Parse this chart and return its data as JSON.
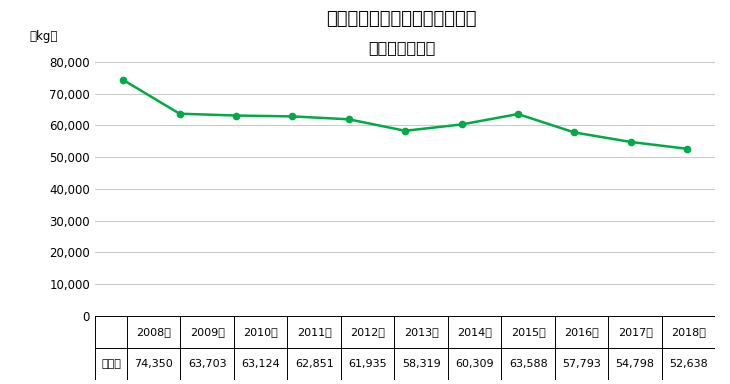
{
  "title_line1": "歯科鋳造用金銀パラジウム合金",
  "title_line2": "（国内出荷量）",
  "ylabel_unit": "（kg）",
  "years": [
    "2008年",
    "2009年",
    "2010年",
    "2011年",
    "2012年",
    "2013年",
    "2014年",
    "2015年",
    "2016年",
    "2017年",
    "2018年"
  ],
  "values": [
    74350,
    63703,
    63124,
    62851,
    61935,
    58319,
    60309,
    63588,
    57793,
    54798,
    52638
  ],
  "row_label": "金パラ",
  "table_values": [
    "74,350",
    "63,703",
    "63,124",
    "62,851",
    "61,935",
    "58,319",
    "60,309",
    "63,588",
    "57,793",
    "54,798",
    "52,638"
  ],
  "line_color": "#00AA44",
  "marker_color": "#00AA44",
  "background_color": "#FFFFFF",
  "grid_color": "#CCCCCC",
  "text_color": "#000000",
  "title_fontsize": 13,
  "tick_fontsize": 8.5,
  "table_fontsize": 8,
  "ylim": [
    0,
    85000
  ],
  "yticks": [
    0,
    10000,
    20000,
    30000,
    40000,
    50000,
    60000,
    70000,
    80000
  ]
}
